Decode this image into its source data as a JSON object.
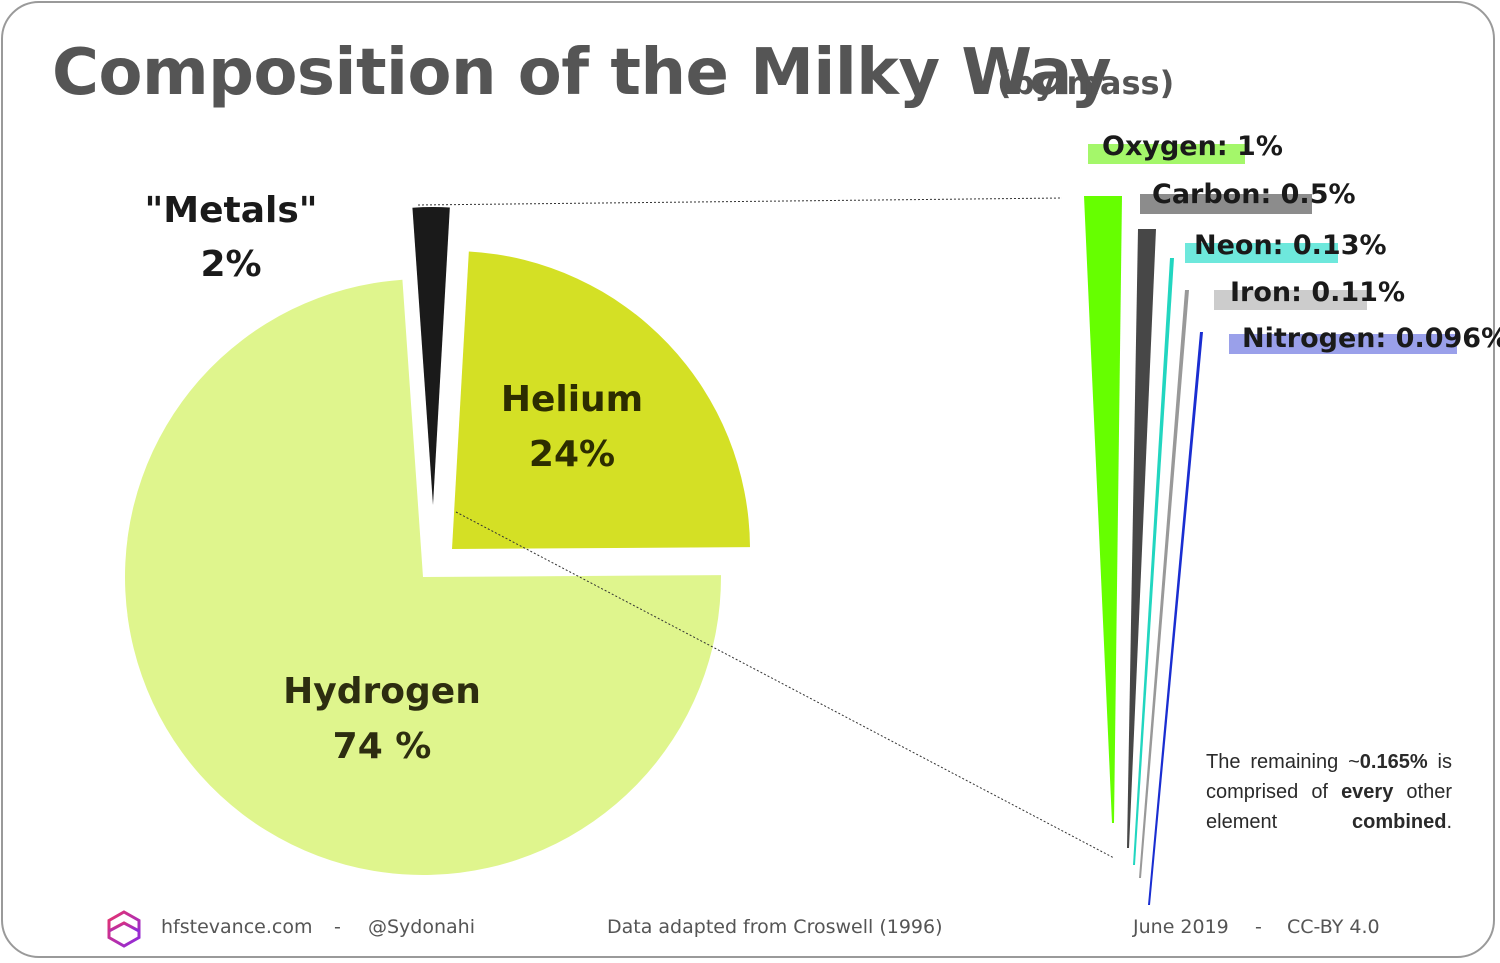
{
  "title": "Composition of the Milky Way",
  "subtitle": "(by mass)",
  "chart_data": {
    "type": "pie",
    "slices": [
      {
        "name": "Hydrogen",
        "label": "74 %",
        "value": 74,
        "color": "#dff58d"
      },
      {
        "name": "Helium",
        "label": "24%",
        "value": 24,
        "color": "#d4e025"
      },
      {
        "name": "\"Metals\"",
        "label": "2%",
        "value": 2,
        "color": "#1a1a1a"
      }
    ],
    "metals_breakdown": [
      {
        "name": "Oxygen",
        "label": "Oxygen: 1%",
        "value": 1,
        "color": "#66ff00",
        "highlight": "#a4f76a"
      },
      {
        "name": "Carbon",
        "label": "Carbon: 0.5%",
        "value": 0.5,
        "color": "#474747",
        "highlight": "#8c8c8c"
      },
      {
        "name": "Neon",
        "label": "Neon: 0.13%",
        "value": 0.13,
        "color": "#22d6c0",
        "highlight": "#6ee8dc"
      },
      {
        "name": "Iron",
        "label": "Iron: 0.11%",
        "value": 0.11,
        "color": "#999999",
        "highlight": "#cccccc"
      },
      {
        "name": "Nitrogen",
        "label": "Nitrogen: 0.096%",
        "value": 0.096,
        "color": "#1a2ed1",
        "highlight": "#9aa0ea"
      }
    ],
    "remaining_value": 0.165
  },
  "remaining_note": {
    "part1": "The remaining ~",
    "value": "0.165%",
    "part2": " is comprised of ",
    "bold2": "every",
    "part3": " other element ",
    "bold3": "combined",
    "part4": "."
  },
  "footer": {
    "site": "hfstevance.com",
    "sep1": "-",
    "handle": "@Sydonahi",
    "source": "Data adapted from Croswell (1996)",
    "date": "June 2019",
    "sep2": "-",
    "license": "CC-BY 4.0"
  },
  "logo_colors": [
    "#e8336b",
    "#8a2be2"
  ]
}
